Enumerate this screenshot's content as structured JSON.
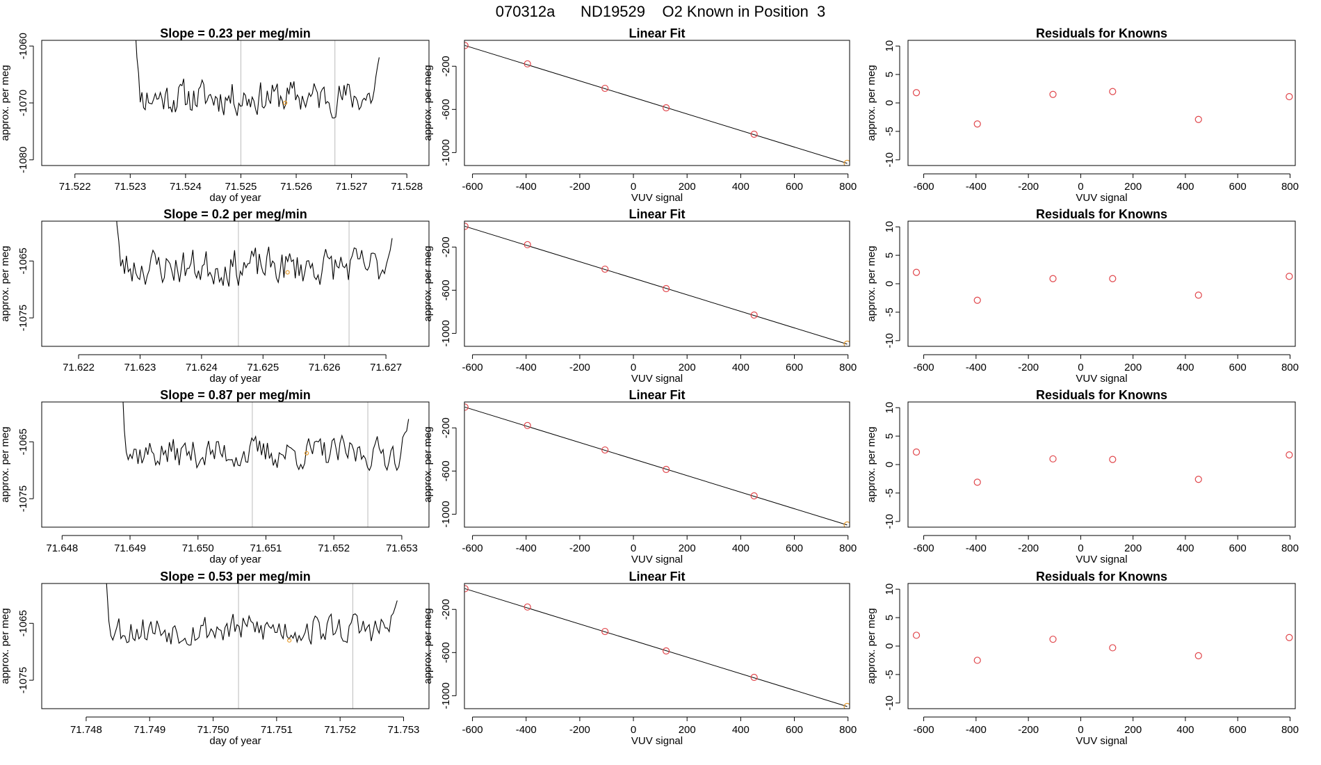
{
  "figure_title": "070312a      ND19529    O2 Known in Position  3",
  "colors": {
    "series": "#000000",
    "guide": "#bbbbbb",
    "marker_red": "#e0454a",
    "marker_orange": "#e69b2e",
    "frame": "#000000"
  },
  "chart_data": [
    {
      "row": 1,
      "time_panel": {
        "type": "line",
        "title": "Slope =  0.23  per meg/min",
        "xlabel": "day of year",
        "ylabel": "approx. per meg",
        "xlim": [
          71.5214,
          71.5284
        ],
        "ylim": [
          -1081,
          -1059
        ],
        "xticks": [
          71.522,
          71.523,
          71.524,
          71.525,
          71.526,
          71.527,
          71.528
        ],
        "xtick_labels": [
          "71.522",
          "71.523",
          "71.524",
          "71.525",
          "71.526",
          "71.527",
          "71.528"
        ],
        "yticks": [
          -1080,
          -1070,
          -1060
        ],
        "ytick_labels": [
          "-1080",
          "-1070",
          "-1060"
        ],
        "vlines": [
          71.525,
          71.5267
        ],
        "x_start": 71.523,
        "x_end": 71.5275,
        "start_high": -1058,
        "end_high": -1058,
        "level": -1069,
        "noise": 2.6,
        "n": 150,
        "seed": 11,
        "marker": {
          "x": 71.5258,
          "y": -1070
        }
      },
      "fit_panel": {
        "type": "scatter",
        "title": "Linear Fit",
        "xlabel": "VUV signal",
        "ylabel": "approx. per meg",
        "xlim": [
          -630,
          806
        ],
        "ylim": [
          -1120,
          40
        ],
        "xticks": [
          -600,
          -400,
          -200,
          0,
          200,
          400,
          600,
          800
        ],
        "xtick_labels": [
          "-600",
          "-400",
          "-200",
          "0",
          "200",
          "400",
          "600",
          "800"
        ],
        "yticks": [
          -1000,
          -600,
          -200
        ],
        "ytick_labels": [
          "-1000",
          "-600",
          "-200"
        ],
        "x": [
          -628,
          -395,
          -106,
          122,
          450,
          797
        ],
        "y": [
          -8,
          -178,
          -405,
          -585,
          -830,
          -1100
        ],
        "line": {
          "x": [
            -628,
            797
          ],
          "y": [
            -8,
            -1100
          ]
        },
        "last_point_color": "orange"
      },
      "resid_panel": {
        "type": "scatter",
        "title": "Residuals for Knowns",
        "xlabel": "VUV signal",
        "ylabel": "approx. per meg",
        "xlim": [
          -660,
          820
        ],
        "ylim": [
          -11,
          11
        ],
        "xticks": [
          -600,
          -400,
          -200,
          0,
          200,
          400,
          600,
          800
        ],
        "xtick_labels": [
          "-600",
          "-400",
          "-200",
          "0",
          "200",
          "400",
          "600",
          "800"
        ],
        "yticks": [
          -10,
          -5,
          0,
          5,
          10
        ],
        "ytick_labels": [
          "-10",
          "-5",
          "0",
          "5",
          "10"
        ],
        "x": [
          -628,
          -395,
          -106,
          122,
          450,
          797
        ],
        "y": [
          1.8,
          -3.7,
          1.5,
          2.0,
          -2.9,
          1.1
        ]
      }
    },
    {
      "row": 2,
      "time_panel": {
        "type": "line",
        "title": "Slope =  0.2  per meg/min",
        "xlabel": "day of year",
        "ylabel": "approx. per meg",
        "xlim": [
          71.6214,
          71.6277
        ],
        "ylim": [
          -1080,
          -1058
        ],
        "xticks": [
          71.622,
          71.623,
          71.624,
          71.625,
          71.626,
          71.627
        ],
        "xtick_labels": [
          "71.622",
          "71.623",
          "71.624",
          "71.625",
          "71.626",
          "71.627"
        ],
        "yticks": [
          -1075,
          -1065
        ],
        "ytick_labels": [
          "-1075",
          "-1065"
        ],
        "vlines": [
          71.6246,
          71.6264
        ],
        "x_start": 71.6225,
        "x_end": 71.6271,
        "start_high": -1057,
        "end_high": -1057,
        "level": -1066,
        "noise": 2.8,
        "n": 150,
        "seed": 23,
        "marker": {
          "x": 71.6254,
          "y": -1067
        }
      },
      "fit_panel": {
        "type": "scatter",
        "title": "Linear Fit",
        "xlabel": "VUV signal",
        "ylabel": "approx. per meg",
        "xlim": [
          -630,
          806
        ],
        "ylim": [
          -1120,
          40
        ],
        "xticks": [
          -600,
          -400,
          -200,
          0,
          200,
          400,
          600,
          800
        ],
        "xtick_labels": [
          "-600",
          "-400",
          "-200",
          "0",
          "200",
          "400",
          "600",
          "800"
        ],
        "yticks": [
          -1000,
          -600,
          -200
        ],
        "ytick_labels": [
          "-1000",
          "-600",
          "-200"
        ],
        "x": [
          -628,
          -395,
          -106,
          122,
          450,
          797
        ],
        "y": [
          -8,
          -178,
          -405,
          -585,
          -830,
          -1100
        ],
        "line": {
          "x": [
            -628,
            797
          ],
          "y": [
            -8,
            -1100
          ]
        },
        "last_point_color": "orange"
      },
      "resid_panel": {
        "type": "scatter",
        "title": "Residuals for Knowns",
        "xlabel": "VUV signal",
        "ylabel": "approx. per meg",
        "xlim": [
          -660,
          820
        ],
        "ylim": [
          -11,
          11
        ],
        "xticks": [
          -600,
          -400,
          -200,
          0,
          200,
          400,
          600,
          800
        ],
        "xtick_labels": [
          "-600",
          "-400",
          "-200",
          "0",
          "200",
          "400",
          "600",
          "800"
        ],
        "yticks": [
          -10,
          -5,
          0,
          5,
          10
        ],
        "ytick_labels": [
          "-10",
          "-5",
          "0",
          "5",
          "10"
        ],
        "x": [
          -628,
          -395,
          -106,
          122,
          450,
          797
        ],
        "y": [
          2.0,
          -2.9,
          0.9,
          0.9,
          -2.0,
          1.3
        ]
      }
    },
    {
      "row": 3,
      "time_panel": {
        "type": "line",
        "title": "Slope =  0.87  per meg/min",
        "xlabel": "day of year",
        "ylabel": "approx. per meg",
        "xlim": [
          71.6477,
          71.6534
        ],
        "ylim": [
          -1080,
          -1058
        ],
        "xticks": [
          71.648,
          71.649,
          71.65,
          71.651,
          71.652,
          71.653
        ],
        "xtick_labels": [
          "71.648",
          "71.649",
          "71.650",
          "71.651",
          "71.652",
          "71.653"
        ],
        "yticks": [
          -1075,
          -1065
        ],
        "ytick_labels": [
          "-1075",
          "-1065"
        ],
        "vlines": [
          71.6508,
          71.6525
        ],
        "x_start": 71.6488,
        "x_end": 71.6531,
        "start_high": -1057,
        "end_high": -1057,
        "level": -1067,
        "noise": 2.4,
        "n": 150,
        "seed": 37,
        "marker": {
          "x": 71.6516,
          "y": -1067
        }
      },
      "fit_panel": {
        "type": "scatter",
        "title": "Linear Fit",
        "xlabel": "VUV signal",
        "ylabel": "approx. per meg",
        "xlim": [
          -630,
          806
        ],
        "ylim": [
          -1120,
          40
        ],
        "xticks": [
          -600,
          -400,
          -200,
          0,
          200,
          400,
          600,
          800
        ],
        "xtick_labels": [
          "-600",
          "-400",
          "-200",
          "0",
          "200",
          "400",
          "600",
          "800"
        ],
        "yticks": [
          -1000,
          -600,
          -200
        ],
        "ytick_labels": [
          "-1000",
          "-600",
          "-200"
        ],
        "x": [
          -628,
          -395,
          -106,
          122,
          450,
          797
        ],
        "y": [
          -8,
          -178,
          -405,
          -585,
          -830,
          -1100
        ],
        "line": {
          "x": [
            -628,
            797
          ],
          "y": [
            -8,
            -1100
          ]
        },
        "last_point_color": "orange"
      },
      "resid_panel": {
        "type": "scatter",
        "title": "Residuals for Knowns",
        "xlabel": "VUV signal",
        "ylabel": "approx. per meg",
        "xlim": [
          -660,
          820
        ],
        "ylim": [
          -11,
          11
        ],
        "xticks": [
          -600,
          -400,
          -200,
          0,
          200,
          400,
          600,
          800
        ],
        "xtick_labels": [
          "-600",
          "-400",
          "-200",
          "0",
          "200",
          "400",
          "600",
          "800"
        ],
        "yticks": [
          -10,
          -5,
          0,
          5,
          10
        ],
        "ytick_labels": [
          "-10",
          "-5",
          "0",
          "5",
          "10"
        ],
        "x": [
          -628,
          -395,
          -106,
          122,
          450,
          797
        ],
        "y": [
          2.2,
          -3.1,
          1.0,
          0.9,
          -2.6,
          1.7
        ]
      }
    },
    {
      "row": 4,
      "time_panel": {
        "type": "line",
        "title": "Slope =  0.53  per meg/min",
        "xlabel": "day of year",
        "ylabel": "approx. per meg",
        "xlim": [
          71.7473,
          71.7534
        ],
        "ylim": [
          -1080,
          -1058
        ],
        "xticks": [
          71.748,
          71.749,
          71.75,
          71.751,
          71.752,
          71.753
        ],
        "xtick_labels": [
          "71.748",
          "71.749",
          "71.750",
          "71.751",
          "71.752",
          "71.753"
        ],
        "yticks": [
          -1075,
          -1065
        ],
        "ytick_labels": [
          "-1075",
          "-1065"
        ],
        "vlines": [
          71.7504,
          71.7522
        ],
        "x_start": 71.7482,
        "x_end": 71.7529,
        "start_high": -1057,
        "end_high": -1057,
        "level": -1066,
        "noise": 2.4,
        "n": 150,
        "seed": 53,
        "marker": {
          "x": 71.7512,
          "y": -1068
        }
      },
      "fit_panel": {
        "type": "scatter",
        "title": "Linear Fit",
        "xlabel": "VUV signal",
        "ylabel": "approx. per meg",
        "xlim": [
          -630,
          806
        ],
        "ylim": [
          -1120,
          40
        ],
        "xticks": [
          -600,
          -400,
          -200,
          0,
          200,
          400,
          600,
          800
        ],
        "xtick_labels": [
          "-600",
          "-400",
          "-200",
          "0",
          "200",
          "400",
          "600",
          "800"
        ],
        "yticks": [
          -1000,
          -600,
          -200
        ],
        "ytick_labels": [
          "-1000",
          "-600",
          "-200"
        ],
        "x": [
          -628,
          -395,
          -106,
          122,
          450,
          797
        ],
        "y": [
          -8,
          -178,
          -405,
          -585,
          -830,
          -1100
        ],
        "line": {
          "x": [
            -628,
            797
          ],
          "y": [
            -8,
            -1100
          ]
        },
        "last_point_color": "orange"
      },
      "resid_panel": {
        "type": "scatter",
        "title": "Residuals for Knowns",
        "xlabel": "VUV signal",
        "ylabel": "approx. per meg",
        "xlim": [
          -660,
          820
        ],
        "ylim": [
          -11,
          11
        ],
        "xticks": [
          -600,
          -400,
          -200,
          0,
          200,
          400,
          600,
          800
        ],
        "xtick_labels": [
          "-600",
          "-400",
          "-200",
          "0",
          "200",
          "400",
          "600",
          "800"
        ],
        "yticks": [
          -10,
          -5,
          0,
          5,
          10
        ],
        "ytick_labels": [
          "-10",
          "-5",
          "0",
          "5",
          "10"
        ],
        "x": [
          -628,
          -395,
          -106,
          122,
          450,
          797
        ],
        "y": [
          1.9,
          -2.5,
          1.2,
          -0.3,
          -1.7,
          1.5
        ]
      }
    }
  ]
}
